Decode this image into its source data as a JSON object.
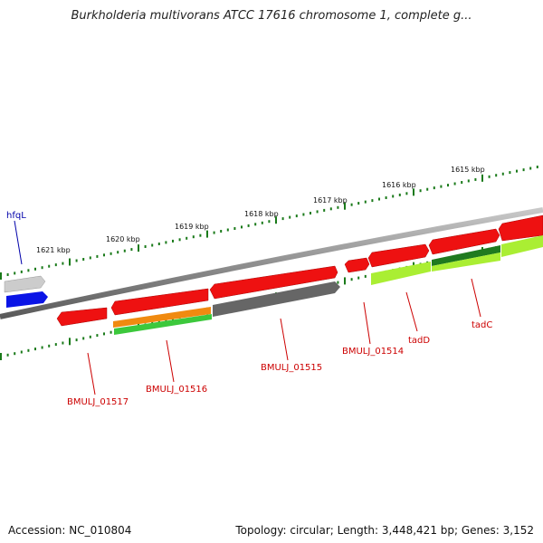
{
  "title": "Burkholderia multivorans ATCC 17616 chromosome 1, complete g...",
  "footer": {
    "accession": "Accession: NC_010804",
    "summary": "Topology: circular; Length: 3,448,421 bp; Genes: 3,152"
  },
  "ticks": [
    "1621 kbp",
    "1620 kbp",
    "1619 kbp",
    "1618 kbp",
    "1617 kbp",
    "1616 kbp",
    "1615 kbp"
  ],
  "gene_labels": [
    {
      "name": "hfqL",
      "color": "#0000aa"
    },
    {
      "name": "BMULJ_01517",
      "color": "#cc0000"
    },
    {
      "name": "BMULJ_01516",
      "color": "#cc0000"
    },
    {
      "name": "BMULJ_01515",
      "color": "#cc0000"
    },
    {
      "name": "BMULJ_01514",
      "color": "#cc0000"
    },
    {
      "name": "tadD",
      "color": "#cc0000"
    },
    {
      "name": "tadC",
      "color": "#cc0000"
    }
  ],
  "colors": {
    "backbone": "#808080",
    "tick": "#1a7a1a",
    "gene_red": "#ee1111",
    "gene_blue": "#0a14e6",
    "gene_grey": "#bbbbbb",
    "gene_dark": "#666666",
    "gene_orange": "#f08a10",
    "gene_green": "#3cc83c",
    "gene_lime": "#aaee33",
    "gene_darkgreen": "#1f7a1f"
  }
}
